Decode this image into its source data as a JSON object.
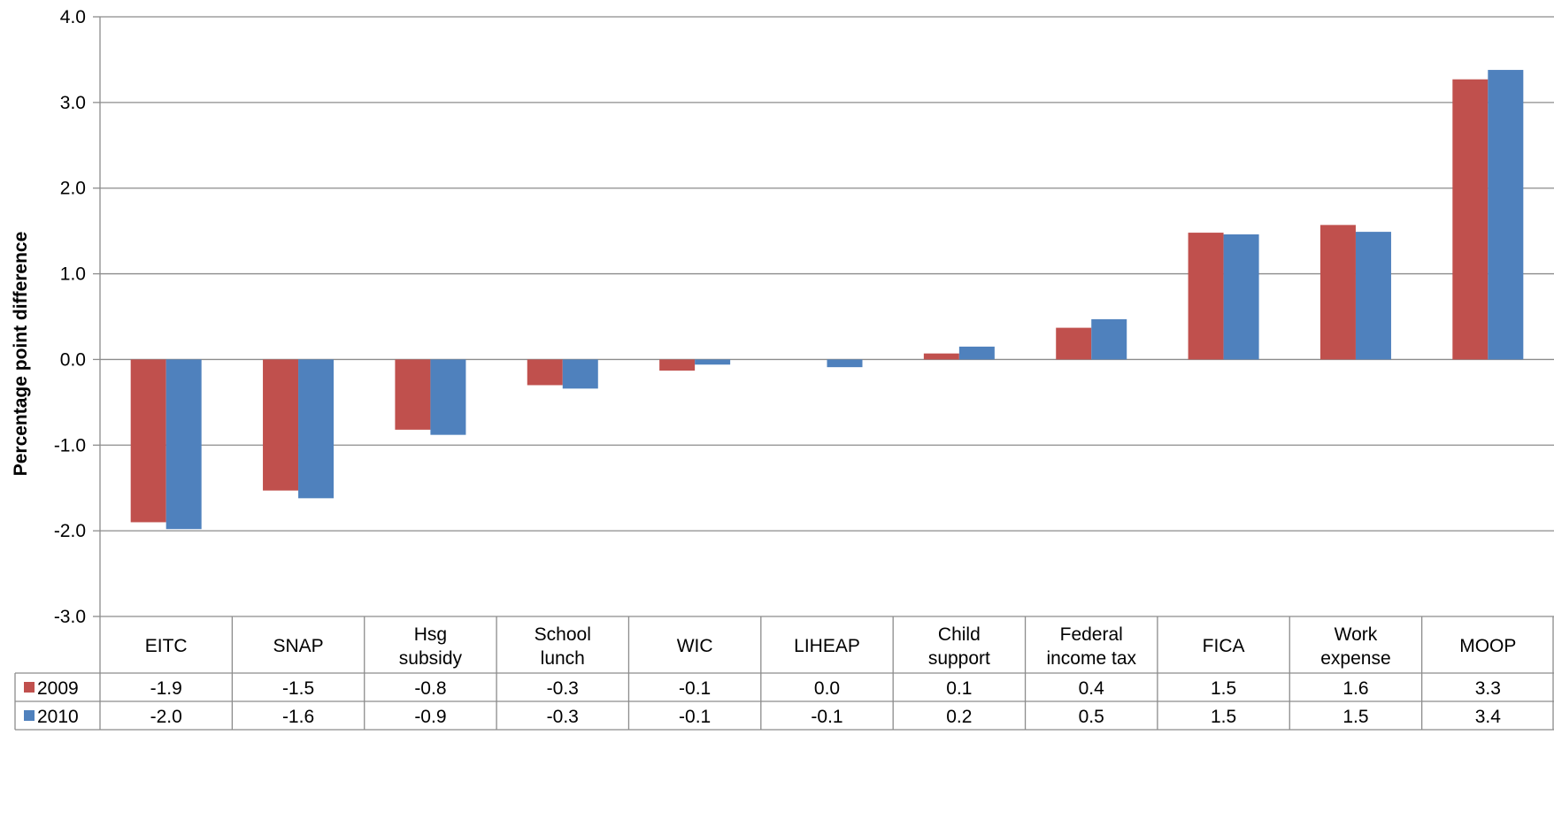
{
  "chart_data": {
    "type": "bar",
    "ylabel": "Percentage point difference",
    "ylim": [
      -3.0,
      4.0
    ],
    "yticks": [
      "4.0",
      "3.0",
      "2.0",
      "1.0",
      "0.0",
      "-1.0",
      "-2.0",
      "-3.0"
    ],
    "grid": true,
    "legend": "data-table-left",
    "categories": [
      [
        "EITC"
      ],
      [
        "SNAP"
      ],
      [
        "Hsg",
        "subsidy"
      ],
      [
        "School",
        "lunch"
      ],
      [
        "WIC"
      ],
      [
        "LIHEAP"
      ],
      [
        "Child",
        "support"
      ],
      [
        "Federal",
        "income tax"
      ],
      [
        "FICA"
      ],
      [
        "Work",
        "expense"
      ],
      [
        "MOOP"
      ]
    ],
    "series": [
      {
        "name": "2009",
        "color": "#C0504D",
        "values": [
          -1.9,
          -1.53,
          -0.82,
          -0.3,
          -0.13,
          0.0,
          0.07,
          0.37,
          1.48,
          1.57,
          3.27
        ],
        "labels": [
          "-1.9",
          "-1.5",
          "-0.8",
          "-0.3",
          "-0.1",
          "0.0",
          "0.1",
          "0.4",
          "1.5",
          "1.6",
          "3.3"
        ]
      },
      {
        "name": "2010",
        "color": "#4F81BD",
        "values": [
          -1.98,
          -1.62,
          -0.88,
          -0.34,
          -0.06,
          -0.09,
          0.15,
          0.47,
          1.46,
          1.49,
          3.38
        ],
        "labels": [
          "-2.0",
          "-1.6",
          "-0.9",
          "-0.3",
          "-0.1",
          "-0.1",
          "0.2",
          "0.5",
          "1.5",
          "1.5",
          "3.4"
        ]
      }
    ]
  }
}
